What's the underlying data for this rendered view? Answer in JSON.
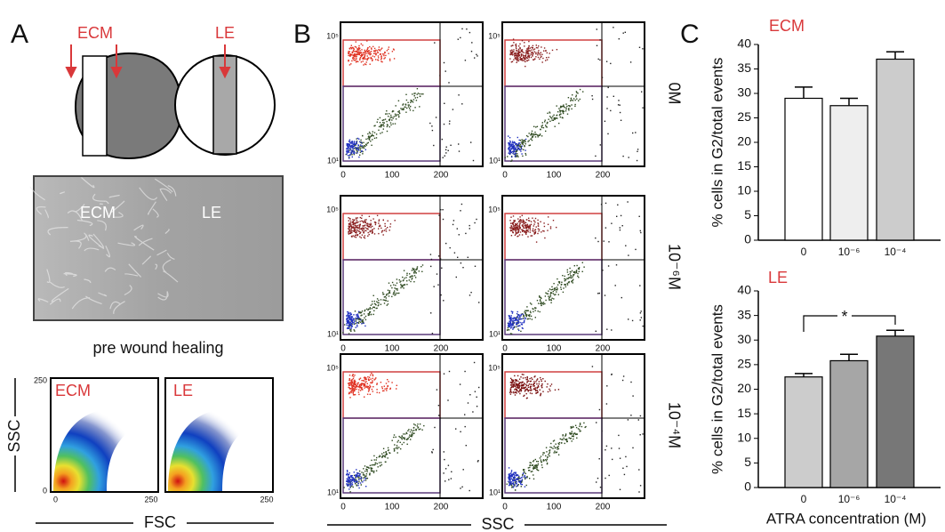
{
  "panel_labels": [
    "A",
    "B",
    "C"
  ],
  "panel_a": {
    "schematic_labels": [
      "ECM",
      "LE"
    ],
    "image_labels": [
      "ECM",
      "LE"
    ],
    "caption": "pre wound healing",
    "density_labels": [
      "ECM",
      "LE"
    ],
    "tick_min": "0",
    "tick_max": "250",
    "y_label": "SSC",
    "x_label": "FSC"
  },
  "panel_b": {
    "row_labels": [
      "0M",
      "10⁻⁶M",
      "10⁻⁴M"
    ],
    "y_ticks": [
      "10⁵",
      "10¹"
    ],
    "x_ticks": [
      "0",
      "100",
      "200"
    ],
    "x_label": "SSC"
  },
  "chart_data": [
    {
      "type": "bar",
      "title": "ECM",
      "categories": [
        "0",
        "10⁻⁶",
        "10⁻⁴"
      ],
      "values": [
        29,
        27.5,
        37
      ],
      "errors": [
        2.3,
        1.5,
        1.5
      ],
      "colors": [
        "#ffffff",
        "#eeeeee",
        "#cccccc"
      ],
      "ylim": [
        0,
        40
      ],
      "yticks": [
        0,
        5,
        10,
        15,
        20,
        25,
        30,
        35,
        40
      ],
      "y_label": "% cells in G2/total events"
    },
    {
      "type": "bar",
      "title": "LE",
      "categories": [
        "0",
        "10⁻⁶",
        "10⁻⁴"
      ],
      "values": [
        22.5,
        25.8,
        30.8
      ],
      "errors": [
        0.7,
        1.3,
        1.2
      ],
      "colors": [
        "#cccccc",
        "#a6a6a6",
        "#777777"
      ],
      "ylim": [
        0,
        40
      ],
      "yticks": [
        0,
        5,
        10,
        15,
        20,
        25,
        30,
        35,
        40
      ],
      "y_label": "% cells in G2/total events",
      "x_label": "ATRA concentration (M)",
      "annotation": "*"
    }
  ]
}
